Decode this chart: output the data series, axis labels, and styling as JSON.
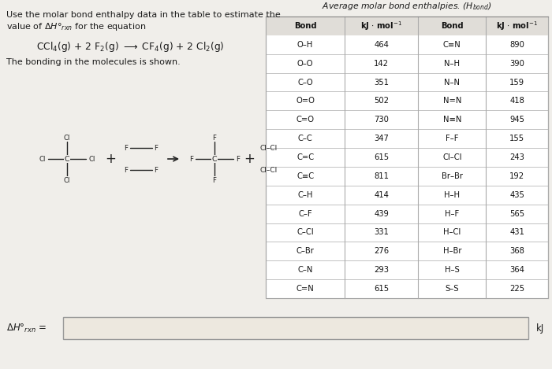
{
  "left_bonds": [
    "O–H",
    "O–O",
    "C–O",
    "O=O",
    "C=O",
    "C–C",
    "C=C",
    "C≡C",
    "C–H",
    "C–F",
    "C–Cl",
    "C–Br",
    "C–N",
    "C=N"
  ],
  "left_values": [
    464,
    142,
    351,
    502,
    730,
    347,
    615,
    811,
    414,
    439,
    331,
    276,
    293,
    615
  ],
  "right_bonds": [
    "C≡N",
    "N–H",
    "N–N",
    "N=N",
    "N≡N",
    "F–F",
    "Cl–Cl",
    "Br–Br",
    "H–H",
    "H–F",
    "H–Cl",
    "H–Br",
    "H–S",
    "S–S"
  ],
  "right_values": [
    890,
    390,
    159,
    418,
    945,
    155,
    243,
    192,
    435,
    565,
    431,
    368,
    364,
    225
  ],
  "bg_color": "#e8e5e0",
  "table_bg": "#ffffff",
  "text_color": "#1a1a1a",
  "dark_text": "#222222"
}
